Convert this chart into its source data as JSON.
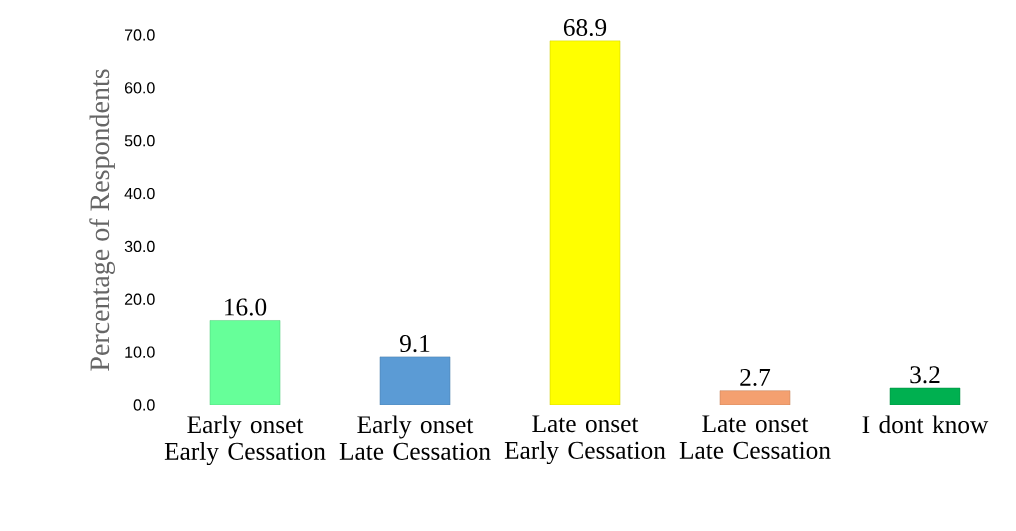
{
  "chart_data": {
    "type": "bar",
    "ylabel": "Percentage of Respondents",
    "categories": [
      "Early onset Early Cessation",
      "Early onset Late Cessation",
      "Late onset Early Cessation",
      "Late onset Late Cessation",
      "I dont know"
    ],
    "values": [
      16.0,
      9.1,
      68.9,
      2.7,
      3.2
    ],
    "value_labels": [
      "16.0",
      "9.1",
      "68.9",
      "2.7",
      "3.2"
    ],
    "colors": [
      "#66ff99",
      "#5b9bd5",
      "#ffff00",
      "#f4a070",
      "#00b050"
    ],
    "ylim": [
      0,
      70
    ],
    "yticks": [
      {
        "value": 0,
        "label": "0.0"
      },
      {
        "value": 10,
        "label": "10.0"
      },
      {
        "value": 20,
        "label": "20.0"
      },
      {
        "value": 30,
        "label": "30.0"
      },
      {
        "value": 40,
        "label": "40.0"
      },
      {
        "value": 50,
        "label": "50.0"
      },
      {
        "value": 60,
        "label": "60.0"
      },
      {
        "value": 70,
        "label": "70.0"
      }
    ],
    "grid": false
  }
}
